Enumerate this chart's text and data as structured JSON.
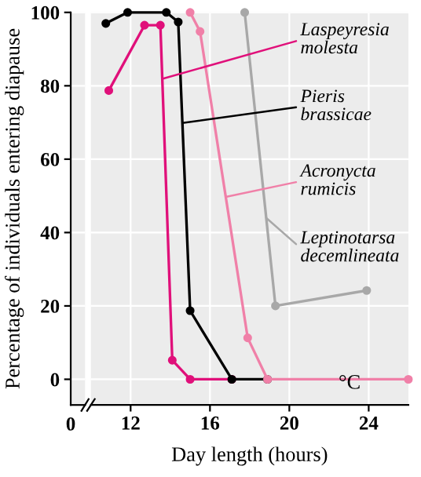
{
  "chart_data": {
    "type": "line",
    "xlabel": "Day length (hours)",
    "ylabel": "Percentage of individuals entering diapause",
    "xlim": [
      10,
      26
    ],
    "ylim": [
      -7,
      100
    ],
    "xticks": [
      12,
      16,
      20,
      24
    ],
    "yticks": [
      0,
      20,
      40,
      60,
      80,
      100
    ],
    "grid": true,
    "marker": "circle",
    "line_style": "solid",
    "legend": "right",
    "annotations": [
      "°C",
      "0"
    ],
    "series": [
      {
        "name": "Laspeyresia molesta",
        "color": "#e0107a",
        "x": [
          10.9,
          12.7,
          13.5,
          14.1,
          15.0,
          17.1
        ],
        "values": [
          78.7,
          96.5,
          96.5,
          5.2,
          0,
          0
        ]
      },
      {
        "name": "Pieris brassicae",
        "color": "#000000",
        "x": [
          10.75,
          11.85,
          13.8,
          14.4,
          15.0,
          17.1,
          18.9
        ],
        "values": [
          97,
          100,
          100,
          97.4,
          18.7,
          0,
          0
        ]
      },
      {
        "name": "Acronycta rumicis",
        "color": "#f080a8",
        "x": [
          15.0,
          15.5,
          17.9,
          18.9,
          26
        ],
        "values": [
          100,
          94.8,
          11.3,
          0,
          0
        ]
      },
      {
        "name": "Leptinotarsa decemlineata",
        "color": "#a8a8a8",
        "x": [
          17.75,
          19.3,
          23.9
        ],
        "values": [
          100,
          20,
          24.2
        ]
      }
    ]
  }
}
